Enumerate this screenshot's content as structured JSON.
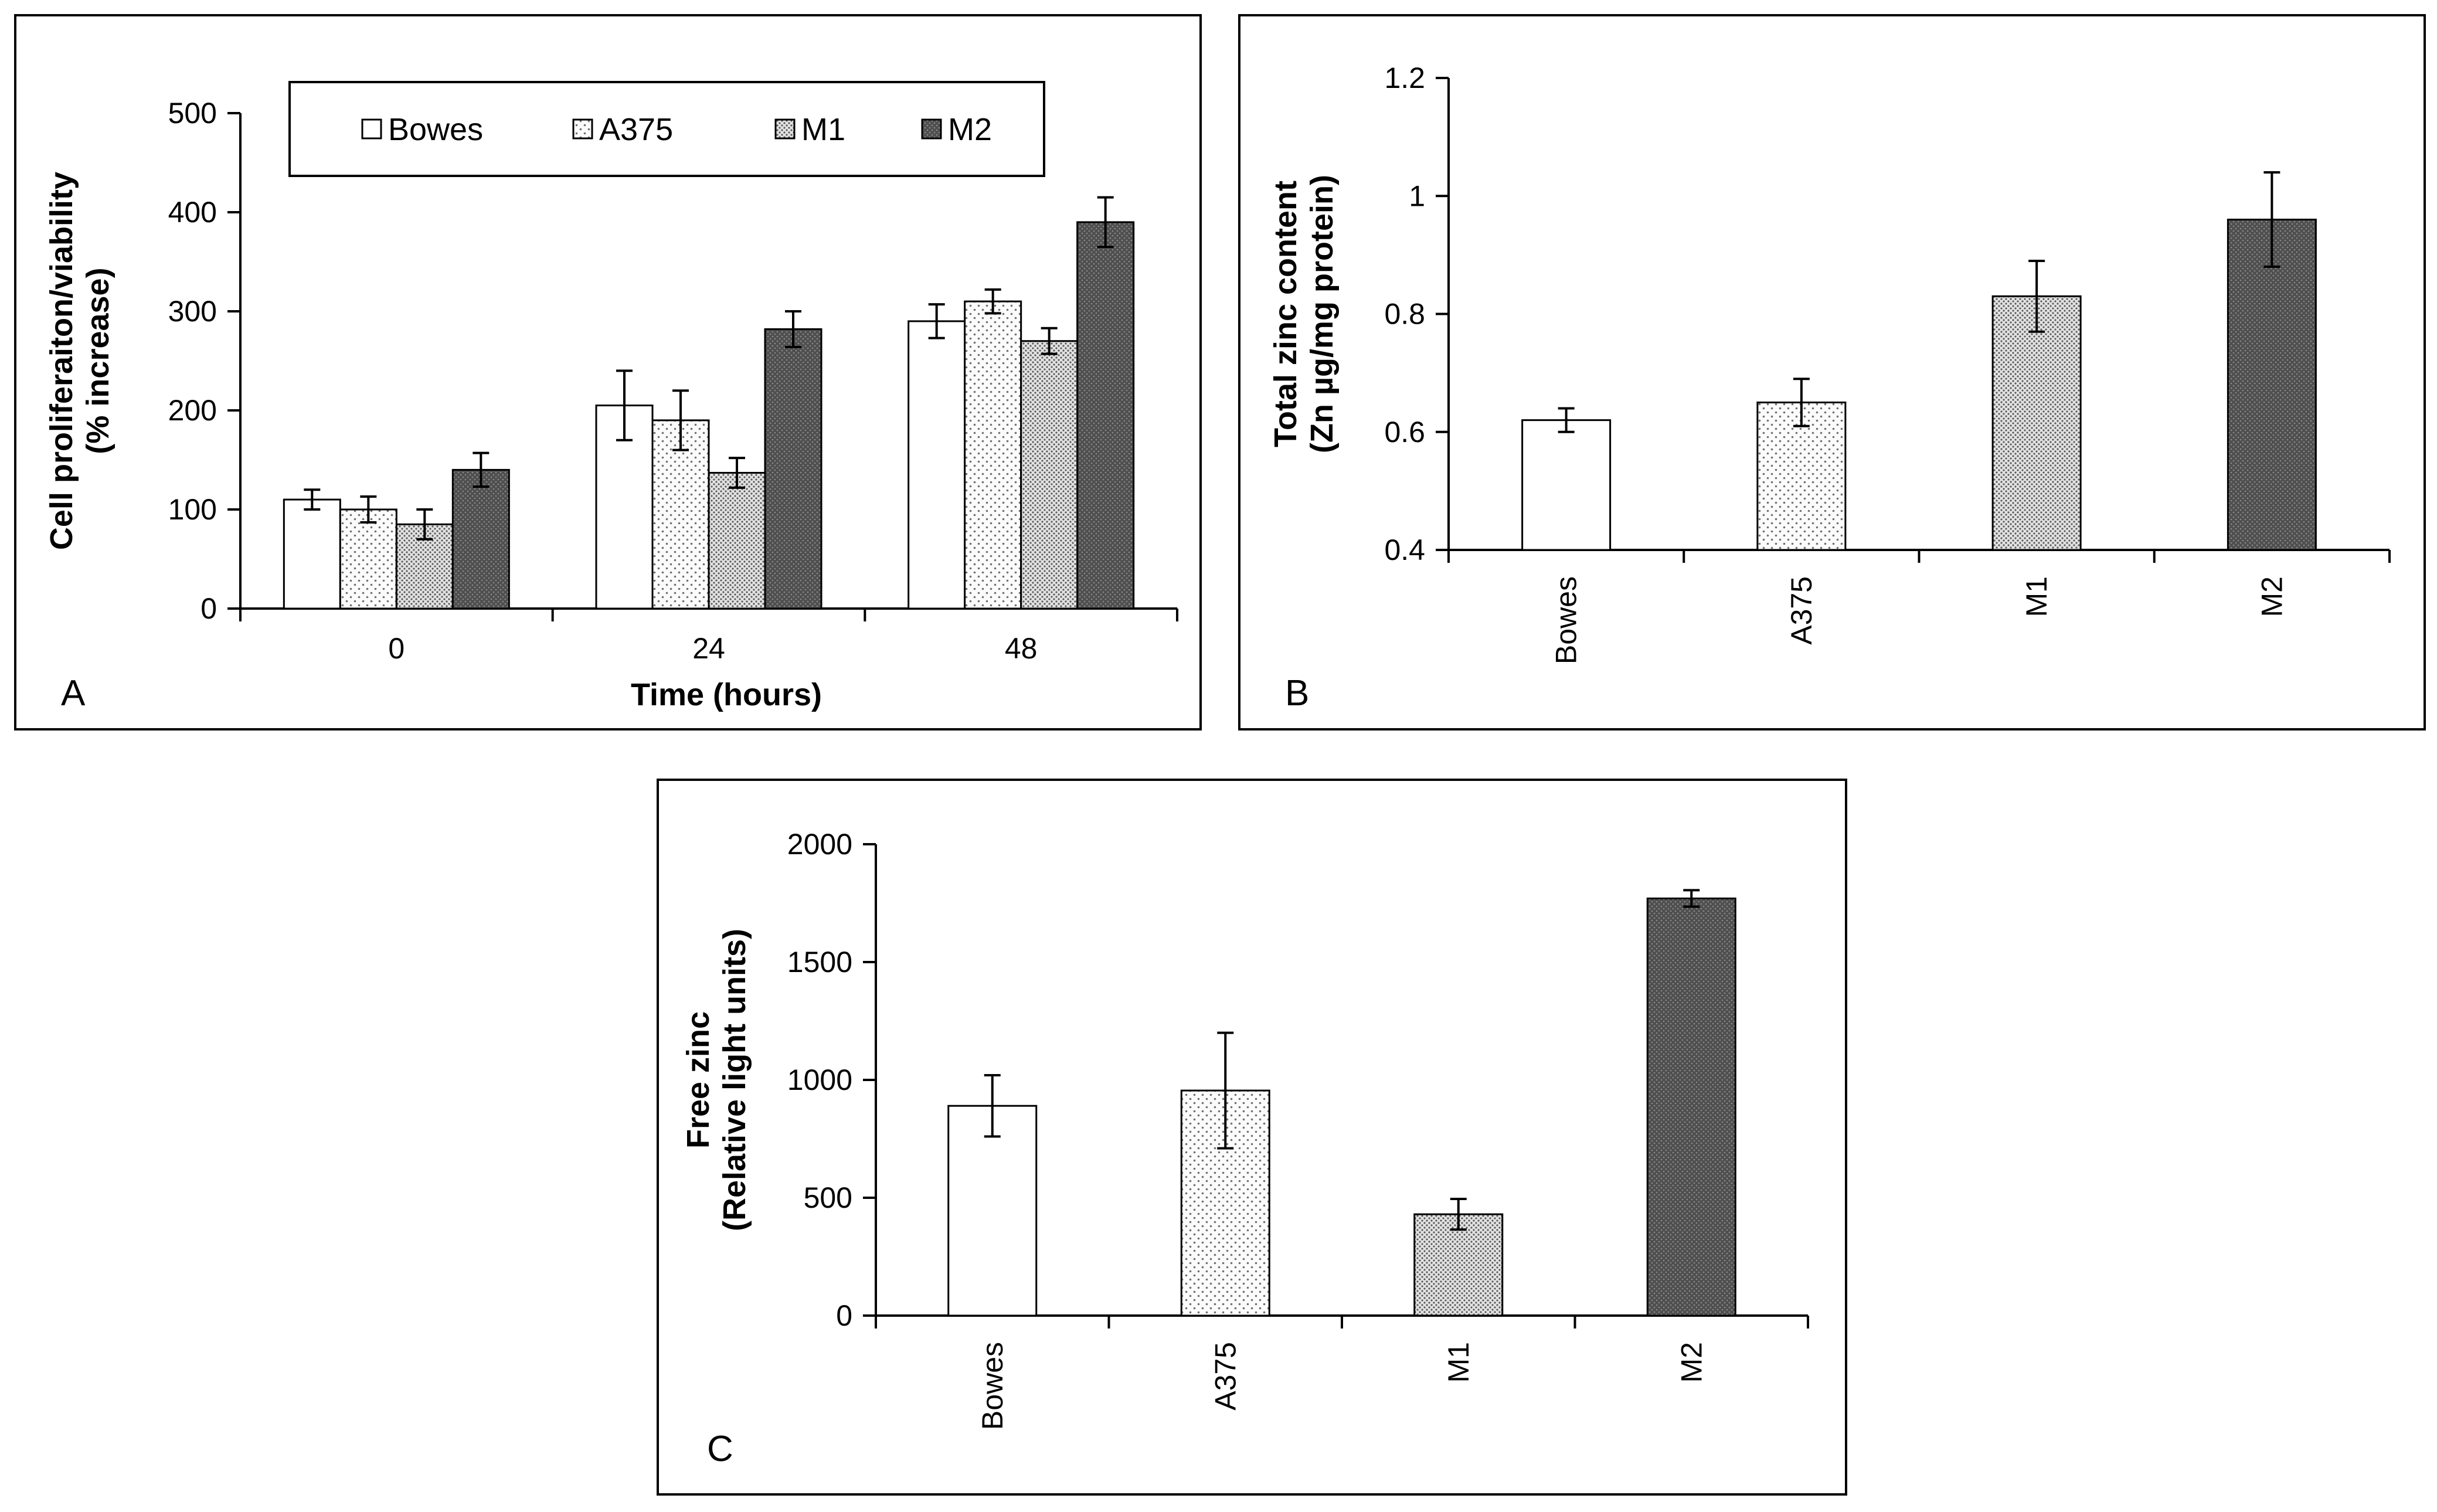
{
  "chart_data": [
    {
      "type": "bar",
      "panel_label": "A",
      "categories": [
        "0",
        "24",
        "48"
      ],
      "series": [
        {
          "name": "Bowes",
          "values": [
            110,
            205,
            290
          ],
          "errors": [
            10,
            35,
            17
          ],
          "fill": "white"
        },
        {
          "name": "A375",
          "values": [
            100,
            190,
            310
          ],
          "errors": [
            13,
            30,
            12
          ],
          "fill": "fine-dots"
        },
        {
          "name": "M1",
          "values": [
            85,
            137,
            270
          ],
          "errors": [
            15,
            15,
            13
          ],
          "fill": "dense-dots"
        },
        {
          "name": "M2",
          "values": [
            140,
            282,
            390
          ],
          "errors": [
            17,
            18,
            25
          ],
          "fill": "dark"
        }
      ],
      "yticks": [
        "0",
        "100",
        "200",
        "300",
        "400",
        "500"
      ],
      "ylim": [
        0,
        500
      ],
      "xlabel": "Time (hours)",
      "ylabel": [
        "Cell proliferaiton/viability",
        "(% increase)"
      ],
      "legend_position": "top"
    },
    {
      "type": "bar",
      "panel_label": "B",
      "categories": [
        "Bowes",
        "A375",
        "M1",
        "M2"
      ],
      "series": [
        {
          "values": [
            0.62,
            0.65,
            0.83,
            0.96
          ],
          "errors": [
            0.02,
            0.04,
            0.06,
            0.08
          ],
          "fills": [
            "white",
            "fine-dots",
            "dense-dots",
            "dark"
          ]
        }
      ],
      "yticks": [
        "0.4",
        "0.6",
        "0.8",
        "1",
        "1.2"
      ],
      "ylim": [
        0.4,
        1.2
      ],
      "xlabel": "",
      "ylabel": [
        "Total zinc content",
        "(Zn µg/mg protein)"
      ]
    },
    {
      "type": "bar",
      "panel_label": "C",
      "categories": [
        "Bowes",
        "A375",
        "M1",
        "M2"
      ],
      "series": [
        {
          "values": [
            890,
            955,
            430,
            1770
          ],
          "errors": [
            130,
            245,
            65,
            35
          ],
          "fills": [
            "white",
            "fine-dots",
            "dense-dots",
            "dark"
          ]
        }
      ],
      "yticks": [
        "0",
        "500",
        "1000",
        "1500",
        "2000"
      ],
      "ylim": [
        0,
        2000
      ],
      "xlabel": "",
      "ylabel": [
        "Free zinc",
        "(Relative light units)"
      ]
    }
  ]
}
